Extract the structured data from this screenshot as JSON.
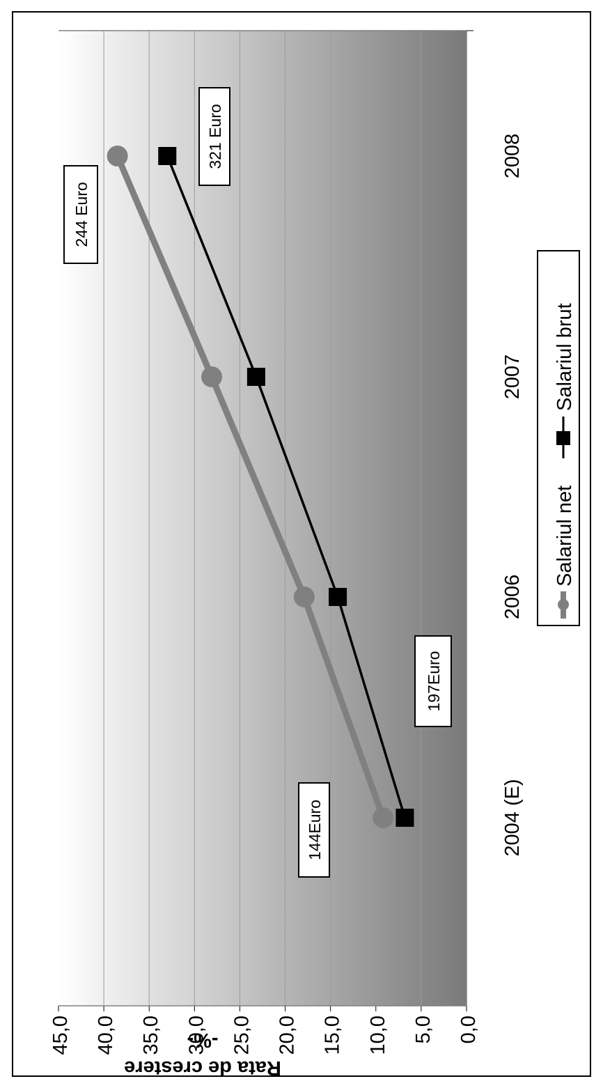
{
  "chart_data": {
    "type": "line",
    "orientation": "rotated-90-clockwise",
    "categories": [
      "2004 (E)",
      "2006",
      "2007",
      "2008"
    ],
    "ylabel_line1": "Rata de crestere",
    "ylabel_line2": "-%-",
    "ylim": [
      0,
      45
    ],
    "yticks": [
      "0,0",
      "5,0",
      "10,0",
      "15,0",
      "20,0",
      "25,0",
      "30,0",
      "35,0",
      "40,0",
      "45,0"
    ],
    "grid": true,
    "legend_position": "right",
    "series": [
      {
        "name": "Salariul net",
        "values": [
          9.2,
          17.9,
          28.1,
          38.5
        ],
        "color": "#808080",
        "marker": "circle"
      },
      {
        "name": "Salariul brut",
        "values": [
          6.8,
          14.2,
          23.2,
          33.0
        ],
        "color": "#000000",
        "marker": "square"
      }
    ],
    "annotations": [
      {
        "text": "144Euro",
        "series": 0,
        "category": 0
      },
      {
        "text": "197Euro",
        "series": 1,
        "category": 0
      },
      {
        "text": "244 Euro",
        "series": 0,
        "category": 3
      },
      {
        "text": "321 Euro",
        "series": 1,
        "category": 3
      }
    ]
  }
}
